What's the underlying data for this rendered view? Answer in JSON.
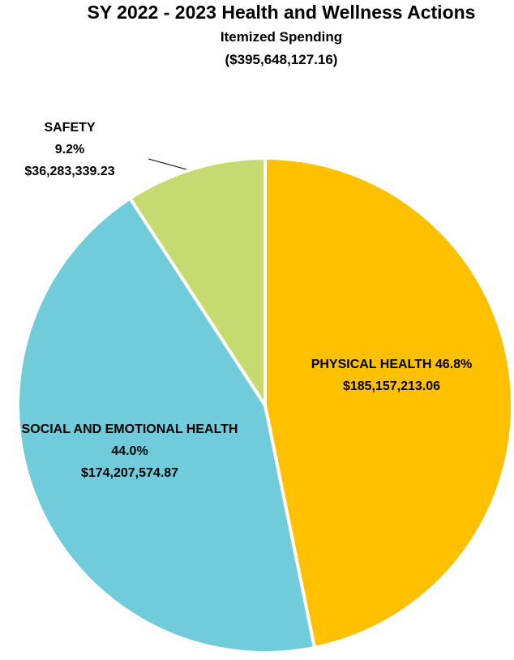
{
  "chart_data": {
    "type": "pie",
    "title": "SY 2022 - 2023 Health and Wellness Actions",
    "subtitle": "Itemized Spending",
    "total_label": "($395,648,127.16)",
    "categories": [
      "PHYSICAL HEALTH",
      "SOCIAL AND EMOTIONAL HEALTH",
      "SAFETY"
    ],
    "values": [
      46.8,
      44.0,
      9.2
    ],
    "value_labels": [
      "46.8%",
      "44.0%",
      "9.2%"
    ],
    "amount_labels": [
      "$185,157,213.06",
      "$174,207,574.87",
      "$36,283,339.23"
    ],
    "colors": [
      "#FFC000",
      "#70CBDB",
      "#C6DB6F"
    ]
  }
}
